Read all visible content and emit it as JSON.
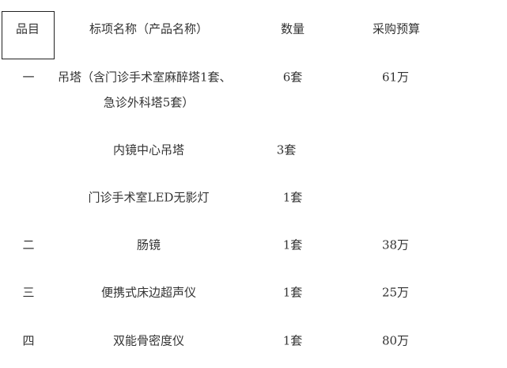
{
  "header": {
    "item": "品目",
    "name": "标项名称（产品名称）",
    "qty": "数量",
    "budget": "采购预算"
  },
  "rows": [
    {
      "item": "一",
      "name_line1": "吊塔（含门诊手术室麻醉塔1套、",
      "name_line2": "急诊外科塔5套）",
      "qty": "6套",
      "budget": "61万"
    },
    {
      "item": "",
      "name": "内镜中心吊塔",
      "qty": "3套",
      "budget": ""
    },
    {
      "item": "",
      "name": "门诊手术室LED无影灯",
      "qty": "1套",
      "budget": ""
    },
    {
      "item": "二",
      "name": "肠镜",
      "qty": "1套",
      "budget": "38万"
    },
    {
      "item": "三",
      "name": "便携式床边超声仪",
      "qty": "1套",
      "budget": "25万"
    },
    {
      "item": "四",
      "name": "双能骨密度仪",
      "qty": "1套",
      "budget": "80万"
    }
  ]
}
